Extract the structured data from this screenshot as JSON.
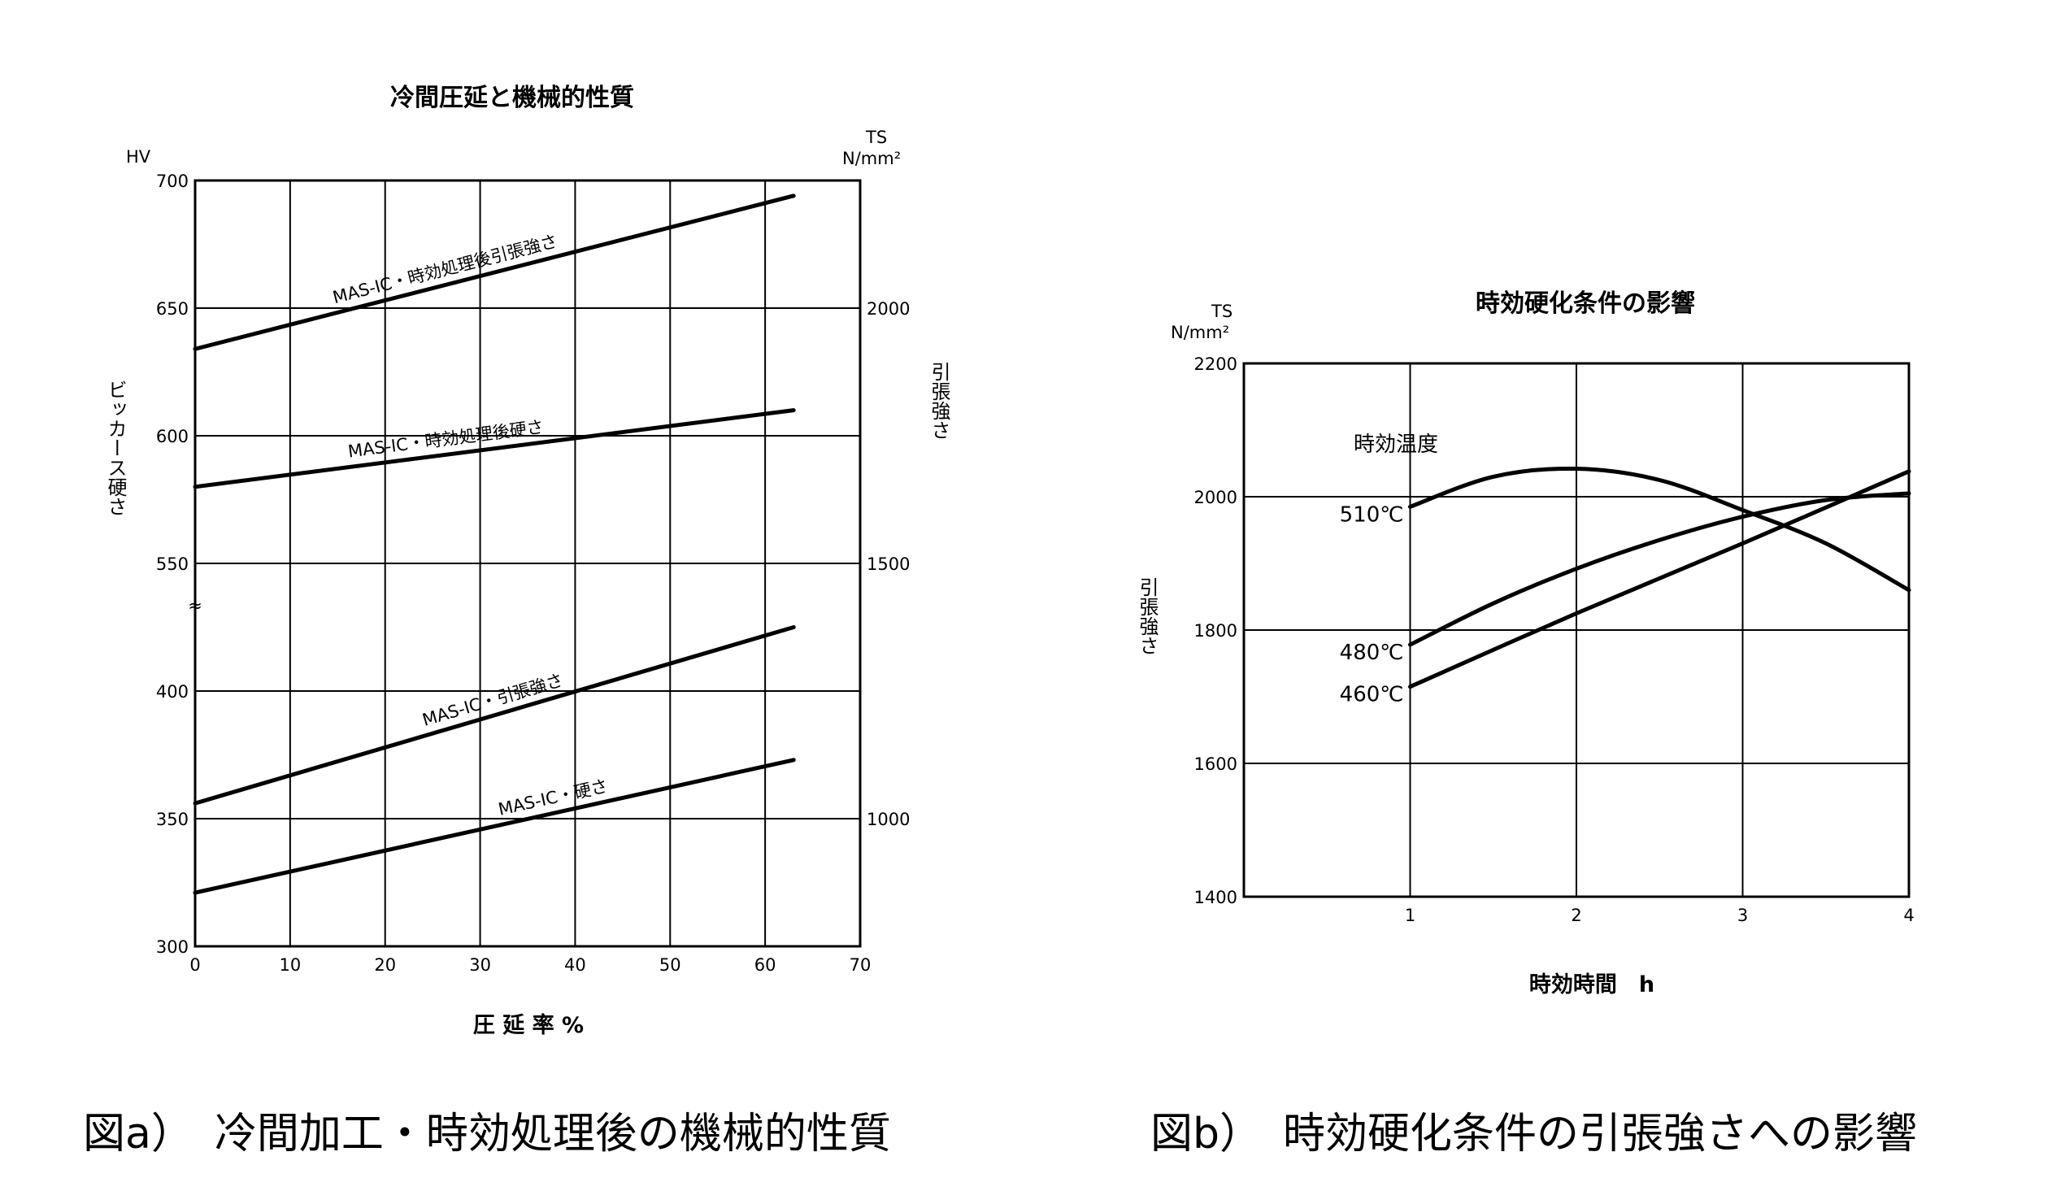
{
  "chart_data": [
    {
      "type": "line",
      "title": "冷間圧延と機械的性質",
      "xlabel": "圧 延 率 %",
      "ylabel": "ビッカース硬さ",
      "ylabel_unit": "HV",
      "y2label": "引張強さ",
      "y2label_unit_top": "TS",
      "y2label_unit_bottom": "N/mm²",
      "xlim": [
        0,
        70
      ],
      "x_ticks": [
        "0",
        "10",
        "20",
        "30",
        "40",
        "50",
        "60",
        "70"
      ],
      "y_tick_labels": [
        "700",
        "650",
        "600",
        "550",
        "400",
        "350",
        "300"
      ],
      "y2_tick_labels": [
        "2000",
        "1500",
        "1000"
      ],
      "axis_break_symbol": "≈",
      "grid": true,
      "series": [
        {
          "name": "MAS-IC・時効処理後引張強さ",
          "x": [
            0,
            63
          ],
          "y": [
            634,
            694
          ]
        },
        {
          "name": "MAS-IC・時効処理後硬さ",
          "x": [
            0,
            63
          ],
          "y": [
            580,
            610
          ]
        },
        {
          "name": "MAS-IC・引張強さ",
          "x": [
            0,
            63
          ],
          "y": [
            356,
            425
          ]
        },
        {
          "name": "MAS-IC・硬さ",
          "x": [
            0,
            63
          ],
          "y": [
            321,
            373
          ]
        }
      ]
    },
    {
      "type": "line",
      "title": "時効硬化条件の影響",
      "xlabel": "時効時間　h",
      "ylabel": "引張強さ",
      "y_unit_top": "TS",
      "y_unit_bottom": "N/mm²",
      "legend_title": "時効温度",
      "xlim": [
        0,
        4
      ],
      "ylim": [
        1400,
        2200
      ],
      "x_ticks": [
        "1",
        "2",
        "3",
        "4"
      ],
      "y_ticks": [
        "2200",
        "2000",
        "1800",
        "1600",
        "1400"
      ],
      "grid": true,
      "series": [
        {
          "name": "510℃",
          "x": [
            1,
            1.5,
            2,
            2.5,
            3,
            3.5,
            4
          ],
          "y": [
            1985,
            2030,
            2042,
            2025,
            1980,
            1930,
            1860
          ]
        },
        {
          "name": "480℃",
          "x": [
            1,
            1.5,
            2,
            2.5,
            3,
            3.5,
            4
          ],
          "y": [
            1778,
            1840,
            1892,
            1935,
            1970,
            1995,
            2005
          ]
        },
        {
          "name": "460℃",
          "x": [
            1,
            2,
            3,
            4
          ],
          "y": [
            1715,
            1825,
            1930,
            2038
          ]
        }
      ]
    }
  ],
  "captions": {
    "left": "図a）　冷間加工・時効処理後の機械的性質",
    "right": "図b）　時効硬化条件の引張強さへの影響"
  }
}
